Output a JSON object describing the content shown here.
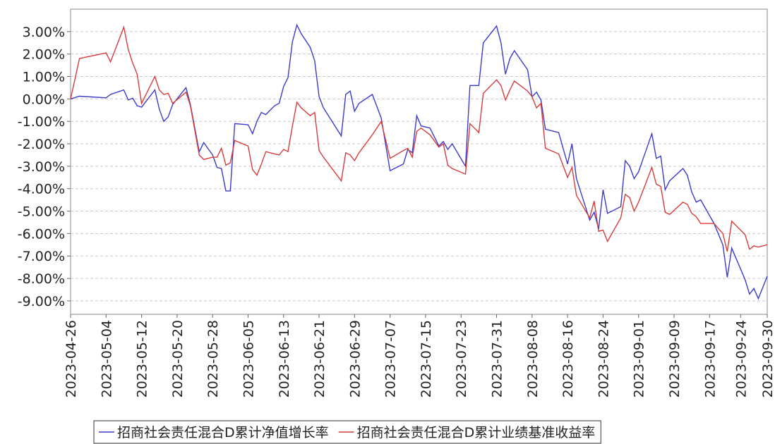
{
  "chart_data": {
    "type": "line",
    "x": [
      "2023-04-26",
      "2023-04-28",
      "2023-05-04",
      "2023-05-05",
      "2023-05-08",
      "2023-05-09",
      "2023-05-10",
      "2023-05-11",
      "2023-05-12",
      "2023-05-15",
      "2023-05-16",
      "2023-05-17",
      "2023-05-18",
      "2023-05-19",
      "2023-05-22",
      "2023-05-23",
      "2023-05-25",
      "2023-05-26",
      "2023-05-28",
      "2023-05-29",
      "2023-05-30",
      "2023-05-31",
      "2023-06-01",
      "2023-06-02",
      "2023-06-05",
      "2023-06-06",
      "2023-06-07",
      "2023-06-08",
      "2023-06-09",
      "2023-06-11",
      "2023-06-12",
      "2023-06-13",
      "2023-06-14",
      "2023-06-15",
      "2023-06-16",
      "2023-06-17",
      "2023-06-19",
      "2023-06-20",
      "2023-06-21",
      "2023-06-22",
      "2023-06-26",
      "2023-06-27",
      "2023-06-28",
      "2023-06-29",
      "2023-06-30",
      "2023-07-03",
      "2023-07-05",
      "2023-07-07",
      "2023-07-10",
      "2023-07-11",
      "2023-07-12",
      "2023-07-13",
      "2023-07-14",
      "2023-07-16",
      "2023-07-18",
      "2023-07-19",
      "2023-07-20",
      "2023-07-21",
      "2023-07-24",
      "2023-07-25",
      "2023-07-27",
      "2023-07-28",
      "2023-07-31",
      "2023-08-01",
      "2023-08-02",
      "2023-08-03",
      "2023-08-04",
      "2023-08-07",
      "2023-08-08",
      "2023-08-09",
      "2023-08-10",
      "2023-08-11",
      "2023-08-14",
      "2023-08-16",
      "2023-08-17",
      "2023-08-18",
      "2023-08-21",
      "2023-08-22",
      "2023-08-23",
      "2023-08-24",
      "2023-08-25",
      "2023-08-28",
      "2023-08-29",
      "2023-08-30",
      "2023-08-31",
      "2023-09-01",
      "2023-09-04",
      "2023-09-05",
      "2023-09-06",
      "2023-09-07",
      "2023-09-08",
      "2023-09-11",
      "2023-09-12",
      "2023-09-13",
      "2023-09-14",
      "2023-09-15",
      "2023-09-18",
      "2023-09-20",
      "2023-09-21",
      "2023-09-22",
      "2023-09-25",
      "2023-09-26",
      "2023-09-27",
      "2023-09-28",
      "2023-09-30"
    ],
    "series": [
      {
        "name": "招商社会责任混合D累计净值增长率",
        "color": "#3a3acc",
        "values": [
          0,
          0.12,
          0.05,
          0.2,
          0.4,
          -0.05,
          0.03,
          -0.3,
          -0.37,
          0.4,
          -0.45,
          -1.0,
          -0.8,
          -0.25,
          0.5,
          -0.25,
          -2.35,
          -1.95,
          -2.5,
          -3.05,
          -3.1,
          -4.1,
          -4.1,
          -1.1,
          -1.15,
          -1.55,
          -1.0,
          -0.6,
          -0.7,
          -0.3,
          -0.2,
          0.55,
          0.95,
          2.55,
          3.3,
          2.9,
          2.3,
          1.7,
          0.1,
          -0.4,
          -1.65,
          0.2,
          0.35,
          -0.55,
          -0.2,
          0.2,
          -0.85,
          -3.2,
          -2.9,
          -2.25,
          -2.4,
          -0.75,
          -1.2,
          -1.3,
          -2.1,
          -1.9,
          -2.25,
          -2.0,
          -3.0,
          0.6,
          0.6,
          2.5,
          3.25,
          2.5,
          1.1,
          1.8,
          2.15,
          1.3,
          0.1,
          0.3,
          -0.05,
          -1.35,
          -1.5,
          -2.9,
          -2.0,
          -3.55,
          -5.4,
          -5.05,
          -5.8,
          -4.05,
          -5.1,
          -4.8,
          -2.75,
          -3.0,
          -3.55,
          -3.25,
          -1.55,
          -2.65,
          -2.55,
          -4.05,
          -3.65,
          -3.1,
          -3.4,
          -4.15,
          -4.6,
          -4.5,
          -5.55,
          -6.5,
          -7.95,
          -6.65,
          -8.05,
          -8.7,
          -8.45,
          -8.9,
          -7.9
        ]
      },
      {
        "name": "招商社会责任混合D累计业绩基准收益率",
        "color": "#d63c3c",
        "values": [
          0,
          1.8,
          2.05,
          1.65,
          3.2,
          2.2,
          1.6,
          1.1,
          -0.2,
          1.0,
          0.4,
          0.2,
          0.25,
          -0.2,
          0.3,
          -0.3,
          -2.5,
          -2.7,
          -2.6,
          -2.6,
          -2.2,
          -2.95,
          -2.85,
          -1.85,
          -2.1,
          -3.15,
          -3.4,
          -2.9,
          -2.35,
          -2.45,
          -2.5,
          -2.25,
          -2.35,
          -1.2,
          -0.15,
          -0.4,
          -0.75,
          -0.6,
          -2.3,
          -2.6,
          -3.65,
          -2.4,
          -2.5,
          -2.75,
          -2.4,
          -1.6,
          -1.0,
          -2.65,
          -2.3,
          -2.2,
          -2.6,
          -1.45,
          -1.3,
          -1.6,
          -2.15,
          -2.0,
          -2.95,
          -3.1,
          -3.35,
          -1.1,
          -1.5,
          0.25,
          0.85,
          0.6,
          -0.05,
          0.4,
          0.8,
          0.35,
          0.1,
          -0.4,
          -0.2,
          -2.2,
          -2.45,
          -3.5,
          -3.05,
          -4.3,
          -5.3,
          -4.55,
          -5.9,
          -5.85,
          -6.35,
          -5.3,
          -4.25,
          -4.4,
          -5.0,
          -4.6,
          -3.05,
          -3.8,
          -3.9,
          -5.05,
          -5.15,
          -4.6,
          -4.7,
          -5.1,
          -5.25,
          -5.55,
          -5.55,
          -6.0,
          -6.8,
          -5.45,
          -6.05,
          -6.7,
          -6.55,
          -6.6,
          -6.5
        ]
      }
    ],
    "xlim": [
      "2023-04-26",
      "2023-09-30"
    ],
    "xticks": [
      "2023-04-26",
      "2023-05-04",
      "2023-05-12",
      "2023-05-20",
      "2023-05-28",
      "2023-06-05",
      "2023-06-13",
      "2023-06-21",
      "2023-06-29",
      "2023-07-07",
      "2023-07-15",
      "2023-07-23",
      "2023-07-31",
      "2023-08-08",
      "2023-08-16",
      "2023-08-24",
      "2023-09-01",
      "2023-09-09",
      "2023-09-17",
      "2023-09-24",
      "2023-09-30"
    ],
    "ylim": [
      -9.6,
      4.0
    ],
    "yticks": [
      {
        "value": 3,
        "label": "3.00%"
      },
      {
        "value": 2,
        "label": "2.00%"
      },
      {
        "value": 1,
        "label": "1.00%"
      },
      {
        "value": 0,
        "label": "0.00%"
      },
      {
        "value": -1,
        "label": "-1.00%"
      },
      {
        "value": -2,
        "label": "-2.00%"
      },
      {
        "value": -3,
        "label": "-3.00%"
      },
      {
        "value": -4,
        "label": "-4.00%"
      },
      {
        "value": -5,
        "label": "-5.00%"
      },
      {
        "value": -6,
        "label": "-6.00%"
      },
      {
        "value": -7,
        "label": "-7.00%"
      },
      {
        "value": -8,
        "label": "-8.00%"
      },
      {
        "value": -9,
        "label": "-9.00%"
      }
    ],
    "grid": true,
    "legend": "bottom"
  }
}
